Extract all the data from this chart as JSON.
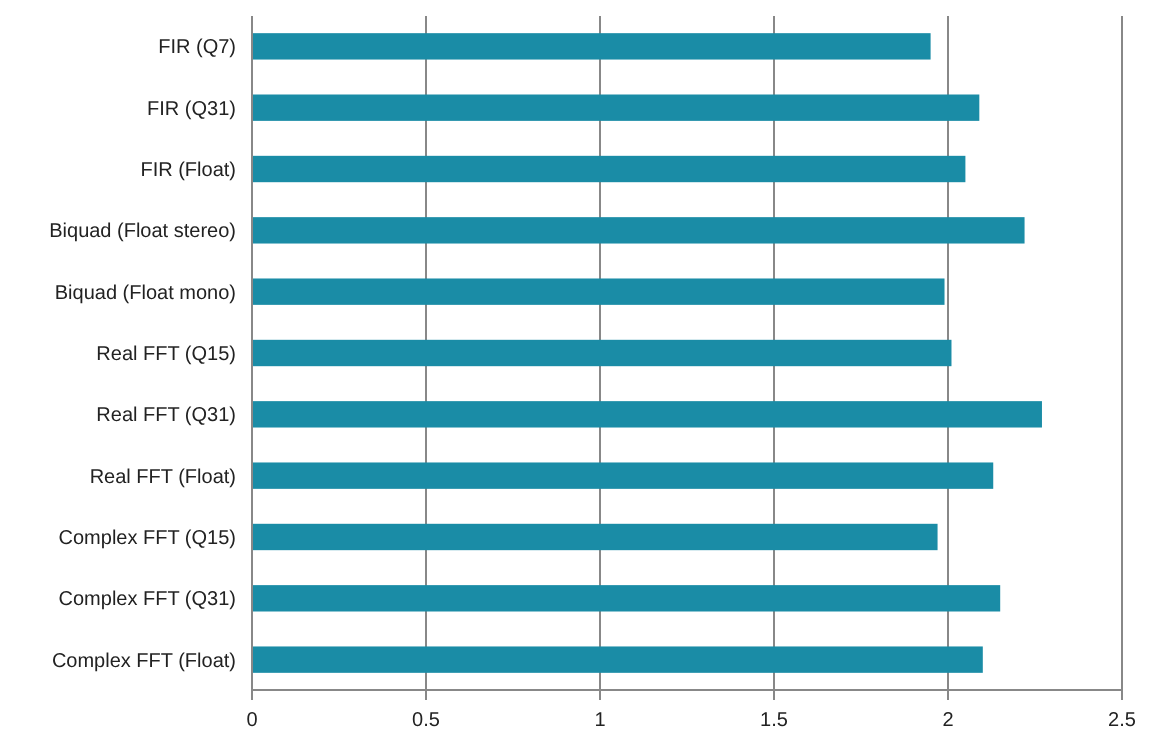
{
  "chart_data": {
    "type": "bar",
    "orientation": "horizontal",
    "categories": [
      "FIR (Q7)",
      "FIR (Q31)",
      "FIR (Float)",
      "Biquad (Float stereo)",
      "Biquad (Float mono)",
      "Real FFT (Q15)",
      "Real FFT (Q31)",
      "Real FFT (Float)",
      "Complex FFT (Q15)",
      "Complex FFT (Q31)",
      "Complex FFT (Float)"
    ],
    "values": [
      1.95,
      2.09,
      2.05,
      2.22,
      1.99,
      2.01,
      2.27,
      2.13,
      1.97,
      2.15,
      2.1
    ],
    "color": "#1a8ca6",
    "xlim": [
      0,
      2.5
    ],
    "xticks": [
      0,
      0.5,
      1,
      1.5,
      2,
      2.5
    ],
    "grid": "x"
  }
}
